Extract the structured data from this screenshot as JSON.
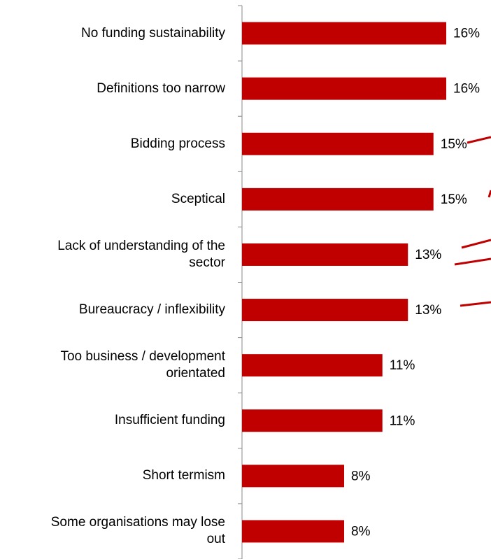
{
  "chart_data": {
    "type": "bar",
    "orientation": "horizontal",
    "color": "#c00000",
    "categories": [
      "No funding sustainability",
      "Definitions too narrow",
      "Bidding process",
      "Sceptical",
      "Lack of understanding of the\nsector",
      "Bureaucracy / inflexibility",
      "Too business / development\norientated",
      "Insufficient funding",
      "Short termism",
      "Some organisations may lose\nout"
    ],
    "values": [
      16,
      16,
      15,
      15,
      13,
      13,
      11,
      11,
      8,
      8
    ],
    "value_labels": [
      "16%",
      "16%",
      "15%",
      "15%",
      "13%",
      "13%",
      "11%",
      "11%",
      "8%",
      "8%"
    ]
  }
}
